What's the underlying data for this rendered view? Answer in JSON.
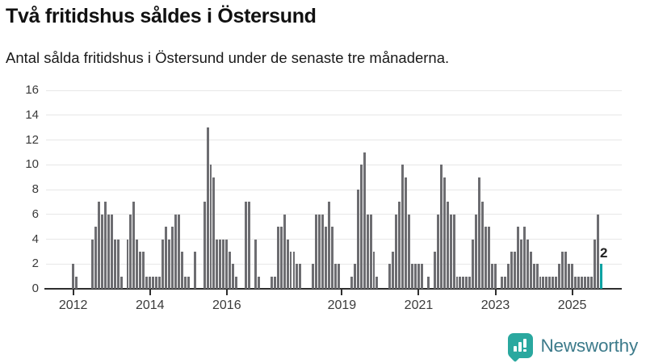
{
  "header": {
    "title": "Två fritidshus såldes i Östersund",
    "subtitle": "Antal sålda fritidshus i Östersund under de senaste tre månaderna."
  },
  "chart_data": {
    "type": "bar",
    "title": "Två fritidshus såldes i Östersund",
    "subtitle": "Antal sålda fritidshus i Östersund under de senaste tre månaderna.",
    "ylim": [
      0,
      16
    ],
    "yticks": [
      0,
      2,
      4,
      6,
      8,
      10,
      12,
      14,
      16
    ],
    "x_tick_years": [
      "2012",
      "2014",
      "2016",
      "2019",
      "2021",
      "2023",
      "2025"
    ],
    "grid": "horizontal",
    "start_month": "2011-05",
    "values_by_year": {
      "2011": [
        0,
        0,
        0,
        0,
        0,
        0,
        0,
        0
      ],
      "2012": [
        2,
        1,
        0,
        0,
        0,
        0,
        4,
        5,
        7,
        6,
        7,
        6
      ],
      "2013": [
        6,
        4,
        4,
        1,
        0,
        4,
        6,
        7,
        4,
        3,
        3,
        1
      ],
      "2014": [
        1,
        1,
        1,
        1,
        4,
        5,
        4,
        5,
        6,
        6,
        3,
        1
      ],
      "2015": [
        1,
        0,
        3,
        0,
        0,
        7,
        13,
        10,
        9,
        4,
        4,
        4
      ],
      "2016": [
        4,
        3,
        2,
        1,
        0,
        0,
        7,
        7,
        0,
        4,
        1,
        0
      ],
      "2017": [
        0,
        0,
        1,
        1,
        5,
        5,
        6,
        4,
        3,
        3,
        2,
        2
      ],
      "2018": [
        0,
        0,
        0,
        2,
        6,
        6,
        6,
        5,
        7,
        5,
        2,
        2
      ],
      "2019": [
        0,
        0,
        0,
        1,
        2,
        8,
        10,
        11,
        6,
        6,
        3,
        1
      ],
      "2020": [
        0,
        0,
        0,
        2,
        3,
        6,
        7,
        10,
        9,
        6,
        2,
        2
      ],
      "2021": [
        2,
        2,
        0,
        1,
        0,
        3,
        6,
        10,
        9,
        7,
        6,
        6
      ],
      "2022": [
        1,
        1,
        1,
        1,
        1,
        4,
        6,
        9,
        7,
        5,
        5,
        2
      ],
      "2023": [
        2,
        0,
        1,
        1,
        2,
        3,
        3,
        5,
        4,
        5,
        4,
        3
      ],
      "2024": [
        2,
        2,
        1,
        1,
        1,
        1,
        1,
        1,
        2,
        3,
        3,
        2
      ],
      "2025": [
        2,
        1,
        1,
        1,
        1,
        1,
        1,
        4,
        6,
        2
      ]
    },
    "highlight": {
      "month": "2025-10",
      "value": 2,
      "label": "2"
    },
    "right_pad_slots": 6,
    "colors": {
      "bar": "#6d6d71",
      "highlight": "#0aa2a2",
      "grid": "#e7e7e7",
      "axis": "#2e2e2e"
    }
  },
  "footer": {
    "brand": "Newsworthy"
  }
}
